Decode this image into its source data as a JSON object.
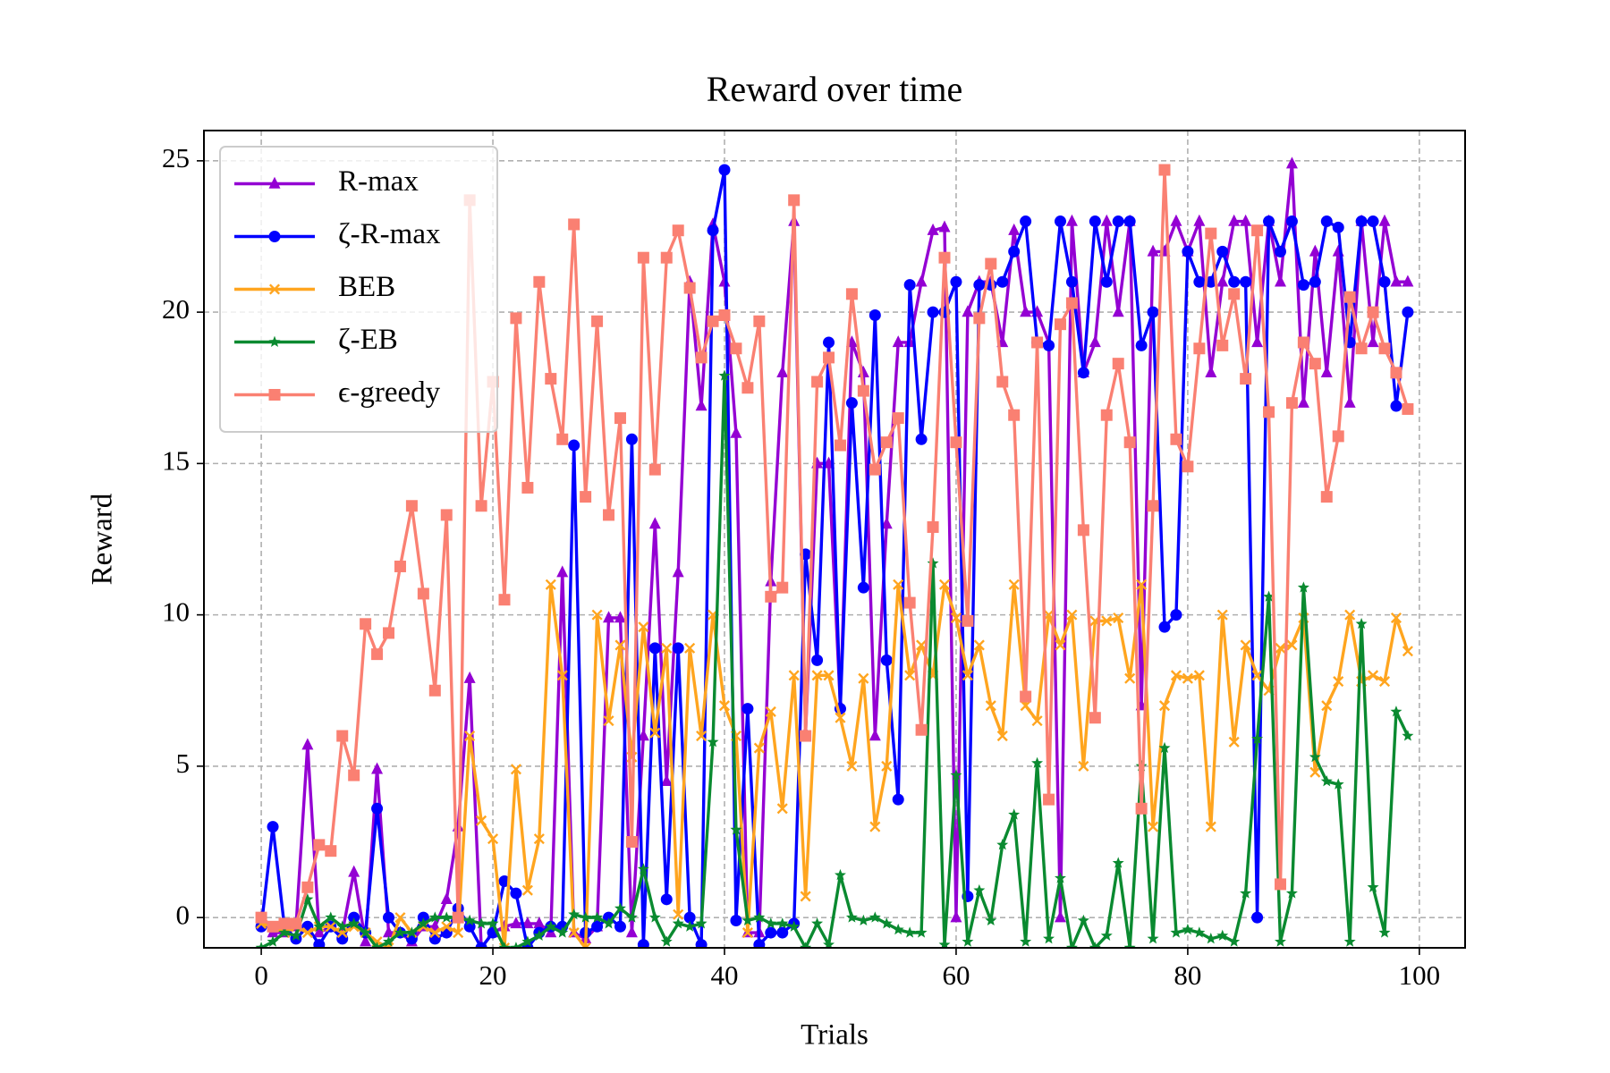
{
  "chart_data": {
    "type": "line",
    "title": "Reward over time",
    "x_label": "Trials",
    "y_label": "Reward",
    "xlim": [
      -4.95,
      103.95
    ],
    "ylim": [
      -1,
      26
    ],
    "xticks": [
      0,
      20,
      40,
      60,
      80,
      100
    ],
    "yticks": [
      0,
      5,
      10,
      15,
      20,
      25
    ],
    "grid": true,
    "legend": "upper left",
    "x": [
      0,
      1,
      2,
      3,
      4,
      5,
      6,
      7,
      8,
      9,
      10,
      11,
      12,
      13,
      14,
      15,
      16,
      17,
      18,
      19,
      20,
      21,
      22,
      23,
      24,
      25,
      26,
      27,
      28,
      29,
      30,
      31,
      32,
      33,
      34,
      35,
      36,
      37,
      38,
      39,
      40,
      41,
      42,
      43,
      44,
      45,
      46,
      47,
      48,
      49,
      50,
      51,
      52,
      53,
      54,
      55,
      56,
      57,
      58,
      59,
      60,
      61,
      62,
      63,
      64,
      65,
      66,
      67,
      68,
      69,
      70,
      71,
      72,
      73,
      74,
      75,
      76,
      77,
      78,
      79,
      80,
      81,
      82,
      83,
      84,
      85,
      86,
      87,
      88,
      89,
      90,
      91,
      92,
      93,
      94,
      95,
      96,
      97,
      98,
      99
    ],
    "series": [
      {
        "name": "R-max",
        "color": "#9400d3",
        "marker": "triangle",
        "values": [
          0,
          -0.5,
          -0.5,
          -0.3,
          5.7,
          -0.5,
          -0.3,
          -0.5,
          1.5,
          -0.8,
          4.9,
          -0.5,
          -0.5,
          -0.8,
          -0.3,
          -0.3,
          0.6,
          3.0,
          7.9,
          -1,
          -0.5,
          -0.3,
          -0.2,
          -0.2,
          -0.2,
          -0.5,
          11.4,
          -0.5,
          -0.7,
          -0.3,
          9.9,
          9.9,
          -0.5,
          6.0,
          13.0,
          4.5,
          11.4,
          21.0,
          16.9,
          22.9,
          21.0,
          16.0,
          -0.5,
          -0.5,
          11.1,
          18.0,
          23.0,
          6.1,
          15.0,
          15.0,
          7.0,
          19.0,
          18.0,
          6.0,
          13.0,
          19.0,
          19.0,
          21.0,
          22.7,
          22.8,
          0,
          20.0,
          21.0,
          21.0,
          19.0,
          22.7,
          20.0,
          20.0,
          19.0,
          0,
          23.0,
          18.0,
          19.0,
          23.0,
          20.0,
          23.0,
          7.0,
          22.0,
          22.0,
          23.0,
          22.0,
          23.0,
          18.0,
          21.0,
          23.0,
          23.0,
          19.0,
          23.0,
          21.0,
          24.9,
          17.0,
          22.0,
          18.0,
          22.0,
          17.0,
          23.0,
          19.0,
          23.0,
          21.0,
          21.0
        ]
      },
      {
        "name": "ζ-R-max",
        "color": "#0000ff",
        "marker": "circle",
        "values": [
          -0.3,
          3.0,
          -0.3,
          -0.7,
          -0.3,
          -0.9,
          -0.3,
          -0.7,
          0,
          -0.5,
          3.6,
          0,
          -0.5,
          -0.7,
          0,
          -0.7,
          -0.5,
          0.3,
          -0.3,
          -1,
          -0.5,
          1.2,
          0.8,
          -1,
          -0.5,
          -0.3,
          -0.3,
          15.6,
          -0.5,
          -0.3,
          0,
          -0.3,
          15.8,
          -0.9,
          8.9,
          0.6,
          8.9,
          0,
          -0.9,
          22.7,
          24.7,
          -0.1,
          6.9,
          -0.9,
          -0.5,
          -0.5,
          -0.2,
          12.0,
          8.5,
          19.0,
          6.9,
          17.0,
          10.9,
          19.9,
          8.5,
          3.9,
          20.9,
          15.8,
          20.0,
          20.0,
          21.0,
          0.7,
          20.9,
          20.9,
          21.0,
          22.0,
          23.0,
          19.0,
          18.9,
          23.0,
          21.0,
          18.0,
          23.0,
          21.0,
          23.0,
          23.0,
          18.9,
          20.0,
          9.6,
          10.0,
          22.0,
          21.0,
          21.0,
          22.0,
          21.0,
          21.0,
          0,
          23.0,
          22.0,
          23.0,
          20.9,
          21.0,
          23.0,
          22.8,
          19.0,
          23.0,
          23.0,
          21.0,
          16.9,
          20.0
        ]
      },
      {
        "name": "BEB",
        "color": "#ffa51f",
        "marker": "x",
        "values": [
          -0.2,
          -0.3,
          -0.5,
          -0.3,
          -0.5,
          -0.3,
          -0.3,
          -0.5,
          -0.3,
          -0.5,
          -0.8,
          -1,
          0,
          -0.5,
          -0.3,
          -0.5,
          -0.3,
          -0.5,
          6.0,
          3.2,
          2.6,
          -1,
          4.9,
          0.9,
          2.6,
          11.0,
          8.0,
          -0.5,
          -1,
          10.0,
          6.5,
          9.0,
          5.3,
          9.6,
          6.1,
          8.9,
          0.1,
          8.9,
          6.0,
          10.0,
          7.0,
          6.0,
          -0.5,
          5.6,
          6.8,
          3.6,
          8.0,
          0.7,
          8.0,
          8.0,
          6.6,
          5.0,
          7.9,
          3.0,
          5.0,
          11.0,
          8.0,
          9.0,
          8.0,
          11.0,
          9.9,
          8.0,
          9.0,
          7.0,
          6.0,
          11.0,
          7.0,
          6.5,
          10.0,
          9.0,
          10.0,
          5.0,
          9.8,
          9.8,
          9.9,
          7.9,
          11.0,
          3.0,
          7.0,
          8.0,
          7.9,
          8.0,
          3.0,
          10.0,
          5.8,
          9.0,
          8.0,
          7.5,
          8.9,
          9.0,
          9.9,
          4.8,
          7.0,
          7.8,
          10.0,
          7.8,
          8.0,
          7.8,
          9.9,
          8.8
        ]
      },
      {
        "name": "ζ-EB",
        "color": "#0a8a30",
        "marker": "star",
        "values": [
          -1,
          -0.8,
          -0.5,
          -0.6,
          0.6,
          -0.3,
          0,
          -0.3,
          -0.2,
          -0.5,
          -1,
          -0.8,
          -0.5,
          -0.5,
          -0.2,
          0,
          0,
          0,
          -0.1,
          -0.2,
          -0.2,
          -1,
          -1,
          -0.8,
          -0.6,
          -0.3,
          -0.5,
          0.1,
          0,
          0,
          -0.2,
          0.3,
          0,
          1.6,
          0,
          -0.8,
          -0.2,
          -0.3,
          -0.2,
          5.8,
          17.9,
          2.9,
          -0.1,
          0,
          -0.2,
          -0.2,
          -0.3,
          -1,
          -0.2,
          -0.9,
          1.4,
          0,
          -0.1,
          0,
          -0.2,
          -0.4,
          -0.5,
          -0.5,
          11.7,
          -0.9,
          4.7,
          -0.8,
          0.9,
          -0.1,
          2.4,
          3.4,
          -0.8,
          5.1,
          -0.7,
          1.3,
          -1,
          -0.1,
          -1,
          -0.6,
          1.8,
          -1,
          5.0,
          -0.7,
          5.6,
          -0.5,
          -0.4,
          -0.5,
          -0.7,
          -0.6,
          -0.8,
          0.8,
          5.9,
          10.6,
          -0.8,
          0.8,
          10.9,
          5.3,
          4.5,
          4.4,
          -0.8,
          9.7,
          1.0,
          -0.5,
          6.8,
          6.0
        ]
      },
      {
        "name": "ϵ-greedy",
        "color": "#fa8072",
        "marker": "square",
        "values": [
          0,
          -0.3,
          -0.2,
          -0.2,
          1.0,
          2.4,
          2.2,
          6.0,
          4.7,
          9.7,
          8.7,
          9.4,
          11.6,
          13.6,
          10.7,
          7.5,
          13.3,
          0,
          23.7,
          13.6,
          17.7,
          10.5,
          19.8,
          14.2,
          21.0,
          17.8,
          15.8,
          22.9,
          13.9,
          19.7,
          13.3,
          16.5,
          2.5,
          21.8,
          14.8,
          21.8,
          22.7,
          20.8,
          18.5,
          19.7,
          19.9,
          18.8,
          17.5,
          19.7,
          10.6,
          10.9,
          23.7,
          6.0,
          17.7,
          18.5,
          15.6,
          20.6,
          17.4,
          14.8,
          15.7,
          16.5,
          10.4,
          6.2,
          12.9,
          21.8,
          15.7,
          9.8,
          19.8,
          21.6,
          17.7,
          16.6,
          7.3,
          19.0,
          3.9,
          19.6,
          20.3,
          12.8,
          6.6,
          16.6,
          18.3,
          15.7,
          3.6,
          13.6,
          24.7,
          15.8,
          14.9,
          18.8,
          22.6,
          18.9,
          20.6,
          17.8,
          22.7,
          16.7,
          1.1,
          17.0,
          19.0,
          18.3,
          13.9,
          15.9,
          20.5,
          18.8,
          20.0,
          18.8,
          18.0,
          16.8
        ]
      }
    ]
  }
}
